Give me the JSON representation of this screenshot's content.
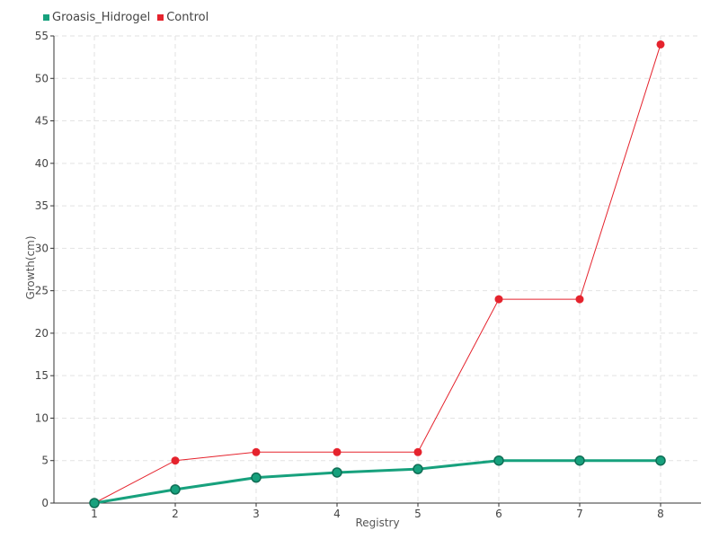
{
  "legend": [
    {
      "name": "Groasis_Hidrogel",
      "color": "#17a17d"
    },
    {
      "name": "Control",
      "color": "#e5232d"
    }
  ],
  "chart_data": {
    "type": "line",
    "x": [
      1,
      2,
      3,
      4,
      5,
      6,
      7,
      8
    ],
    "series": [
      {
        "name": "Groasis_Hidrogel",
        "color": "#17a17d",
        "values": [
          0,
          1.6,
          3.0,
          3.6,
          4.0,
          5.0,
          5.0,
          5.0
        ]
      },
      {
        "name": "Control",
        "color": "#e5232d",
        "values": [
          0,
          5,
          6,
          6,
          6,
          24,
          24,
          54
        ]
      }
    ],
    "xlabel": "Registry",
    "ylabel": "Growth(cm)",
    "ylim": [
      0,
      55
    ],
    "yticks": [
      0,
      5,
      10,
      15,
      20,
      25,
      30,
      35,
      40,
      45,
      50,
      55
    ],
    "xticks": [
      1,
      2,
      3,
      4,
      5,
      6,
      7,
      8
    ],
    "grid": true,
    "legend_position": "top-left"
  }
}
